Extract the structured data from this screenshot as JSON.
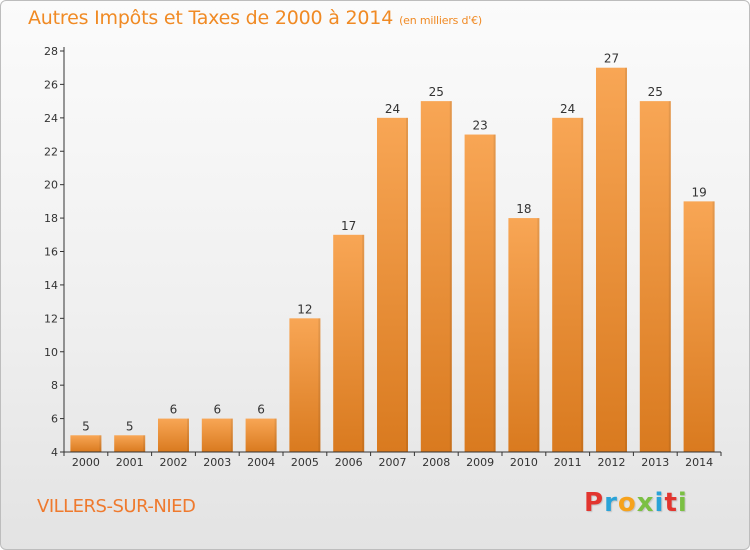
{
  "header": {
    "title": "Autres Impôts et Taxes de 2000 à 2014",
    "unit": "(en milliers d'€)"
  },
  "footer": {
    "commune": "VILLERS-SUR-NIED",
    "logo": [
      {
        "ch": "P",
        "color": "#e2352f"
      },
      {
        "ch": "r",
        "color": "#2aa3d8"
      },
      {
        "ch": "o",
        "color": "#f6a21c"
      },
      {
        "ch": "x",
        "color": "#7bc043"
      },
      {
        "ch": "i",
        "color": "#2aa3d8"
      },
      {
        "ch": "t",
        "color": "#e2352f"
      },
      {
        "ch": "i",
        "color": "#7bc043"
      }
    ]
  },
  "chart_data": {
    "type": "bar",
    "title": "Autres Impôts et Taxes de 2000 à 2014",
    "subtitle": "(en milliers d'€)",
    "xlabel": "",
    "ylabel": "",
    "categories": [
      "2000",
      "2001",
      "2002",
      "2003",
      "2004",
      "2005",
      "2006",
      "2007",
      "2008",
      "2009",
      "2010",
      "2011",
      "2012",
      "2013",
      "2014"
    ],
    "values": [
      5,
      5,
      6,
      6,
      6,
      12,
      17,
      24,
      25,
      23,
      18,
      24,
      27,
      25,
      19
    ],
    "ylim": [
      4,
      28
    ],
    "yticks": [
      4,
      6,
      8,
      10,
      12,
      14,
      16,
      18,
      20,
      22,
      24,
      26,
      28
    ],
    "grid": false,
    "legend": "none",
    "colors": {
      "bar_top": "#f8a655",
      "bar_bottom": "#d97a1f",
      "axis": "#333333"
    }
  }
}
